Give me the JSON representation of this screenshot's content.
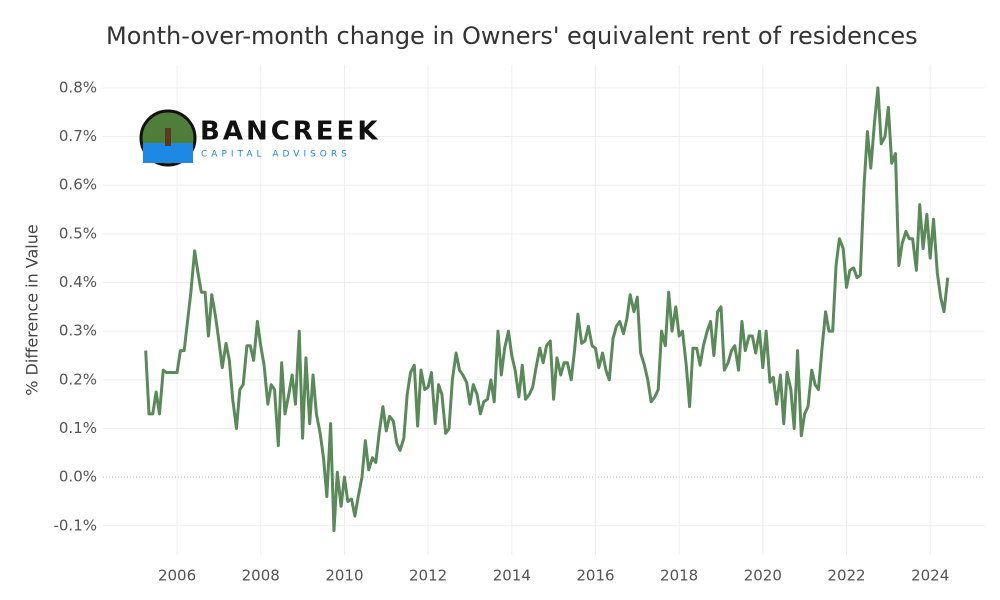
{
  "chart_data": {
    "type": "line",
    "title": "Month-over-month change in Owners' equivalent rent of residences",
    "y_label": "% Difference in Value",
    "logo": {
      "name": "BANCREEK",
      "tagline": "CAPITAL ADVISORS"
    },
    "x": [
      2005.25,
      2005.33,
      2005.42,
      2005.5,
      2005.58,
      2005.67,
      2005.75,
      2005.83,
      2005.92,
      2006.0,
      2006.08,
      2006.17,
      2006.25,
      2006.33,
      2006.42,
      2006.5,
      2006.58,
      2006.67,
      2006.75,
      2006.83,
      2006.92,
      2007.0,
      2007.08,
      2007.17,
      2007.25,
      2007.33,
      2007.42,
      2007.5,
      2007.58,
      2007.67,
      2007.75,
      2007.83,
      2007.92,
      2008.0,
      2008.08,
      2008.17,
      2008.25,
      2008.33,
      2008.42,
      2008.5,
      2008.58,
      2008.67,
      2008.75,
      2008.83,
      2008.92,
      2009.0,
      2009.08,
      2009.17,
      2009.25,
      2009.33,
      2009.42,
      2009.5,
      2009.58,
      2009.67,
      2009.75,
      2009.83,
      2009.92,
      2010.0,
      2010.08,
      2010.17,
      2010.25,
      2010.33,
      2010.42,
      2010.5,
      2010.58,
      2010.67,
      2010.75,
      2010.83,
      2010.92,
      2011.0,
      2011.08,
      2011.17,
      2011.25,
      2011.33,
      2011.42,
      2011.5,
      2011.58,
      2011.67,
      2011.75,
      2011.83,
      2011.92,
      2012.0,
      2012.08,
      2012.17,
      2012.25,
      2012.33,
      2012.42,
      2012.5,
      2012.58,
      2012.67,
      2012.75,
      2012.83,
      2012.92,
      2013.0,
      2013.08,
      2013.17,
      2013.25,
      2013.33,
      2013.42,
      2013.5,
      2013.58,
      2013.67,
      2013.75,
      2013.83,
      2013.92,
      2014.0,
      2014.08,
      2014.17,
      2014.25,
      2014.33,
      2014.42,
      2014.5,
      2014.58,
      2014.67,
      2014.75,
      2014.83,
      2014.92,
      2015.0,
      2015.08,
      2015.17,
      2015.25,
      2015.33,
      2015.42,
      2015.5,
      2015.58,
      2015.67,
      2015.75,
      2015.83,
      2015.92,
      2016.0,
      2016.08,
      2016.17,
      2016.25,
      2016.33,
      2016.42,
      2016.5,
      2016.58,
      2016.67,
      2016.75,
      2016.83,
      2016.92,
      2017.0,
      2017.08,
      2017.17,
      2017.25,
      2017.33,
      2017.42,
      2017.5,
      2017.58,
      2017.67,
      2017.75,
      2017.83,
      2017.92,
      2018.0,
      2018.08,
      2018.17,
      2018.25,
      2018.33,
      2018.42,
      2018.5,
      2018.58,
      2018.67,
      2018.75,
      2018.83,
      2018.92,
      2019.0,
      2019.08,
      2019.17,
      2019.25,
      2019.33,
      2019.42,
      2019.5,
      2019.58,
      2019.67,
      2019.75,
      2019.83,
      2019.92,
      2020.0,
      2020.08,
      2020.17,
      2020.25,
      2020.33,
      2020.42,
      2020.5,
      2020.58,
      2020.67,
      2020.75,
      2020.83,
      2020.92,
      2021.0,
      2021.08,
      2021.17,
      2021.25,
      2021.33,
      2021.42,
      2021.5,
      2021.58,
      2021.67,
      2021.75,
      2021.83,
      2021.92,
      2022.0,
      2022.08,
      2022.17,
      2022.25,
      2022.33,
      2022.42,
      2022.5,
      2022.58,
      2022.67,
      2022.75,
      2022.83,
      2022.92,
      2023.0,
      2023.08,
      2023.17,
      2023.25,
      2023.33,
      2023.42,
      2023.5,
      2023.58,
      2023.67,
      2023.75,
      2023.83,
      2023.92,
      2024.0,
      2024.08,
      2024.17,
      2024.25,
      2024.33,
      2024.42
    ],
    "series": [
      {
        "color": "#5b8a5a",
        "values": [
          0.26,
          0.13,
          0.13,
          0.175,
          0.13,
          0.22,
          0.215,
          0.215,
          0.215,
          0.215,
          0.26,
          0.26,
          0.32,
          0.38,
          0.465,
          0.42,
          0.38,
          0.38,
          0.29,
          0.375,
          0.33,
          0.28,
          0.225,
          0.275,
          0.24,
          0.16,
          0.1,
          0.18,
          0.19,
          0.27,
          0.27,
          0.24,
          0.32,
          0.27,
          0.23,
          0.15,
          0.19,
          0.18,
          0.065,
          0.235,
          0.13,
          0.17,
          0.21,
          0.15,
          0.3,
          0.08,
          0.245,
          0.11,
          0.21,
          0.13,
          0.09,
          0.04,
          -0.04,
          0.11,
          -0.11,
          0.01,
          -0.06,
          0.0,
          -0.05,
          -0.045,
          -0.08,
          -0.04,
          0.0,
          0.075,
          0.015,
          0.04,
          0.03,
          0.09,
          0.145,
          0.095,
          0.125,
          0.115,
          0.07,
          0.055,
          0.08,
          0.17,
          0.215,
          0.23,
          0.105,
          0.22,
          0.18,
          0.185,
          0.215,
          0.11,
          0.19,
          0.17,
          0.09,
          0.1,
          0.2,
          0.255,
          0.22,
          0.21,
          0.195,
          0.15,
          0.19,
          0.17,
          0.13,
          0.155,
          0.16,
          0.2,
          0.155,
          0.3,
          0.21,
          0.265,
          0.3,
          0.25,
          0.22,
          0.165,
          0.23,
          0.16,
          0.17,
          0.185,
          0.225,
          0.265,
          0.235,
          0.27,
          0.28,
          0.16,
          0.245,
          0.21,
          0.235,
          0.235,
          0.2,
          0.26,
          0.335,
          0.275,
          0.28,
          0.31,
          0.27,
          0.265,
          0.225,
          0.255,
          0.22,
          0.2,
          0.285,
          0.31,
          0.32,
          0.295,
          0.325,
          0.375,
          0.34,
          0.37,
          0.255,
          0.23,
          0.2,
          0.155,
          0.165,
          0.18,
          0.3,
          0.27,
          0.38,
          0.3,
          0.35,
          0.29,
          0.3,
          0.23,
          0.145,
          0.265,
          0.265,
          0.23,
          0.27,
          0.3,
          0.32,
          0.25,
          0.34,
          0.35,
          0.22,
          0.235,
          0.26,
          0.27,
          0.22,
          0.32,
          0.26,
          0.29,
          0.29,
          0.255,
          0.3,
          0.225,
          0.3,
          0.195,
          0.205,
          0.15,
          0.21,
          0.11,
          0.215,
          0.18,
          0.1,
          0.26,
          0.085,
          0.13,
          0.145,
          0.22,
          0.19,
          0.18,
          0.27,
          0.34,
          0.3,
          0.3,
          0.435,
          0.49,
          0.47,
          0.39,
          0.425,
          0.43,
          0.41,
          0.415,
          0.6,
          0.71,
          0.635,
          0.73,
          0.8,
          0.685,
          0.7,
          0.76,
          0.645,
          0.665,
          0.435,
          0.48,
          0.505,
          0.49,
          0.49,
          0.425,
          0.56,
          0.47,
          0.54,
          0.45,
          0.53,
          0.42,
          0.37,
          0.34,
          0.41
        ]
      }
    ],
    "xlim": [
      2004.23,
      2025.31
    ],
    "xticks": [
      2006,
      2008,
      2010,
      2012,
      2014,
      2016,
      2018,
      2020,
      2022,
      2024
    ],
    "ylim": [
      -0.16,
      0.847
    ],
    "yticks": [
      {
        "value": -0.1,
        "label": "-0.1%"
      },
      {
        "value": 0.0,
        "label": "0.0%"
      },
      {
        "value": 0.1,
        "label": "0.1%"
      },
      {
        "value": 0.2,
        "label": "0.2%"
      },
      {
        "value": 0.3,
        "label": "0.3%"
      },
      {
        "value": 0.4,
        "label": "0.4%"
      },
      {
        "value": 0.5,
        "label": "0.5%"
      },
      {
        "value": 0.6,
        "label": "0.6%"
      },
      {
        "value": 0.7,
        "label": "0.7%"
      },
      {
        "value": 0.8,
        "label": "0.8%"
      }
    ],
    "grid": true
  }
}
